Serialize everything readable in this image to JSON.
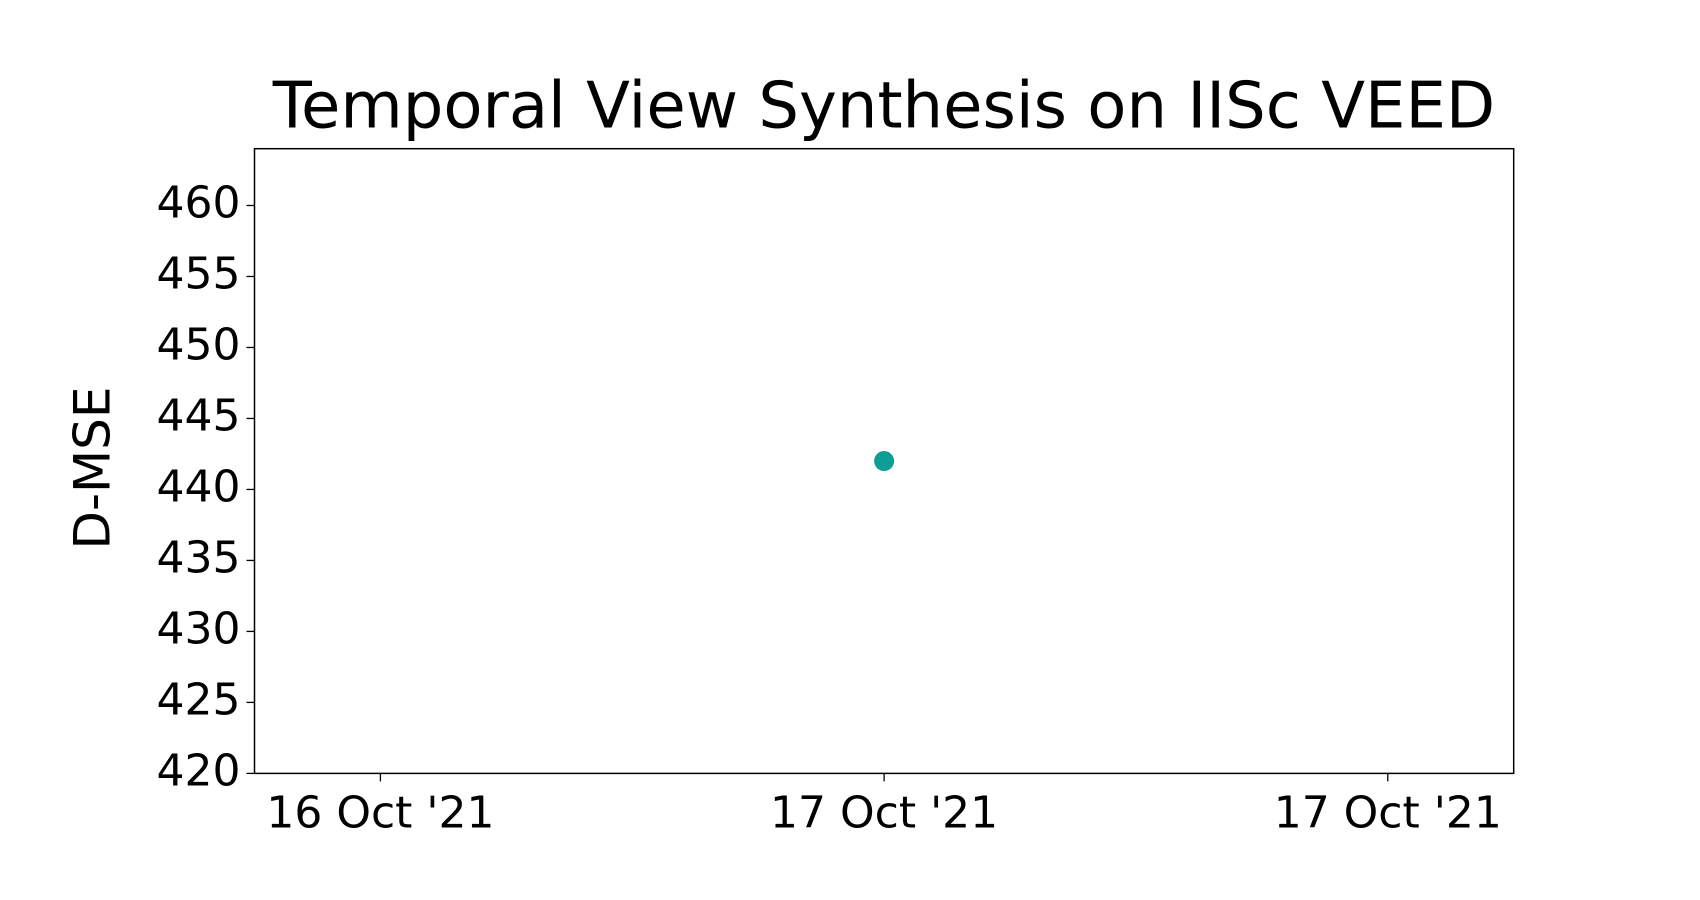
{
  "chart_data": {
    "type": "scatter",
    "title": "Temporal View Synthesis on IISc VEED",
    "y_label": "D-MSE",
    "categories": [
      "16 Oct '21",
      "17 Oct '21",
      "17 Oct '21"
    ],
    "values": [
      null,
      442,
      null
    ],
    "color": "#0e9e96",
    "ylim": [
      420,
      464
    ],
    "yticks": [
      420,
      425,
      430,
      435,
      440,
      445,
      450,
      455,
      460
    ]
  }
}
